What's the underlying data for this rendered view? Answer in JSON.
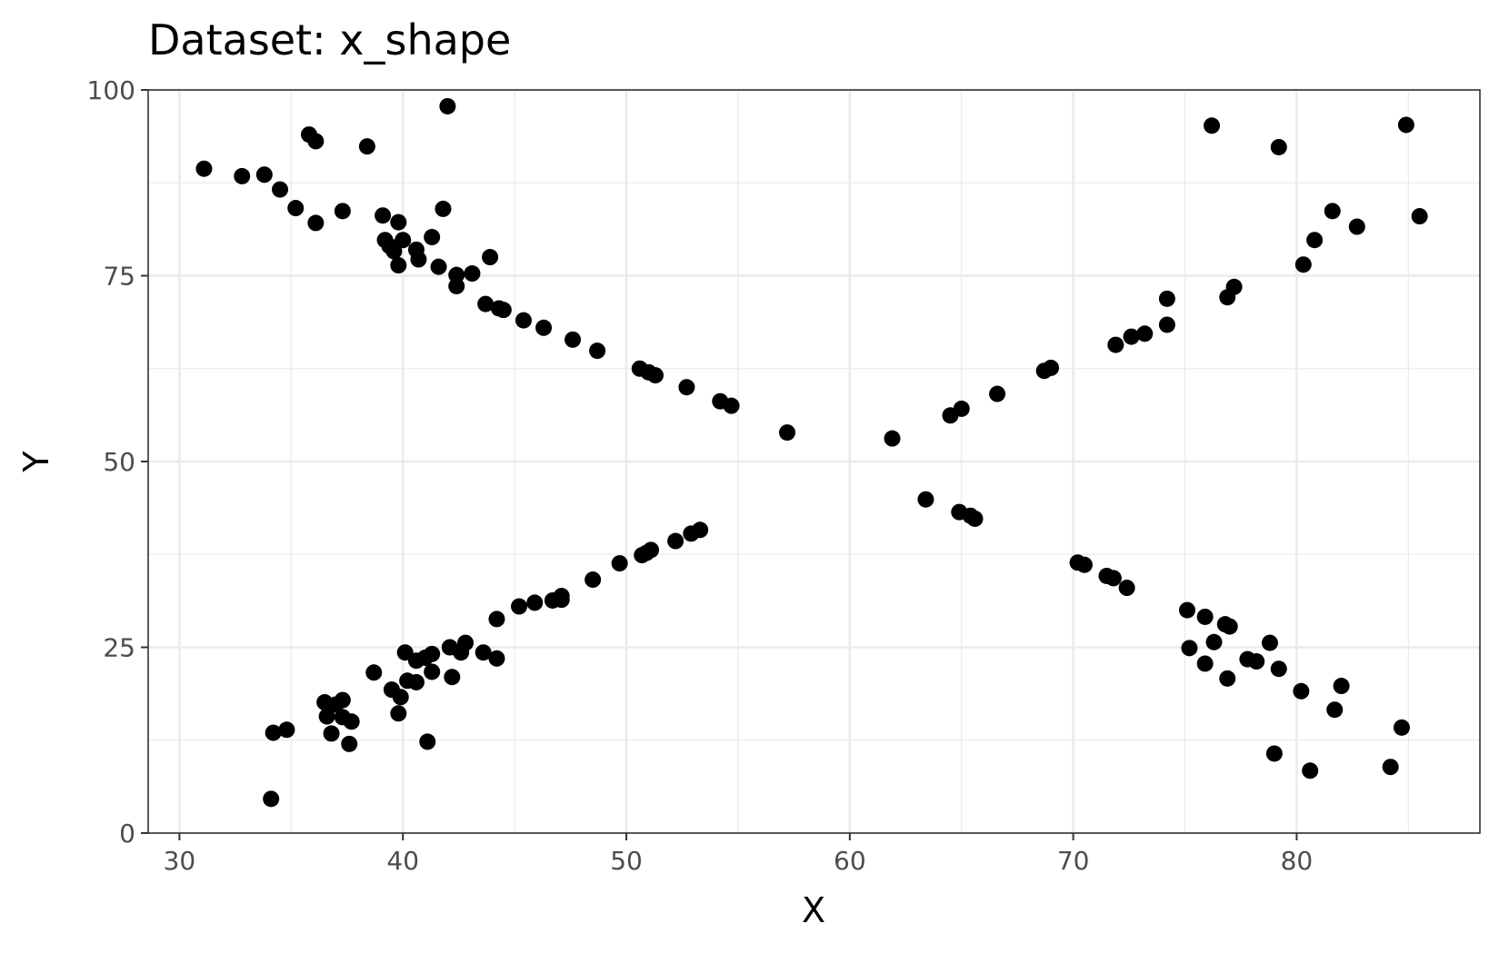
{
  "chart_data": {
    "type": "scatter",
    "title": "Dataset: x_shape",
    "xlabel": "X",
    "ylabel": "Y",
    "xlim": [
      28.6,
      88.2
    ],
    "ylim": [
      0,
      100
    ],
    "x_ticks": [
      30,
      40,
      50,
      60,
      70,
      80
    ],
    "y_ticks": [
      0,
      25,
      50,
      75,
      100
    ],
    "x_tick_labels": [
      "30",
      "40",
      "50",
      "60",
      "70",
      "80"
    ],
    "y_tick_labels": [
      "0",
      "25",
      "50",
      "75",
      "100"
    ],
    "grid": true,
    "point_color": "#000000",
    "points": [
      [
        31.1,
        89.4
      ],
      [
        32.8,
        88.4
      ],
      [
        33.8,
        88.6
      ],
      [
        34.5,
        86.6
      ],
      [
        35.2,
        84.1
      ],
      [
        35.8,
        94.0
      ],
      [
        36.1,
        93.1
      ],
      [
        36.1,
        82.1
      ],
      [
        37.3,
        83.7
      ],
      [
        38.4,
        92.4
      ],
      [
        39.1,
        83.1
      ],
      [
        39.8,
        82.2
      ],
      [
        39.2,
        79.8
      ],
      [
        39.4,
        79.0
      ],
      [
        39.6,
        78.3
      ],
      [
        40.0,
        79.8
      ],
      [
        39.8,
        76.4
      ],
      [
        40.6,
        78.5
      ],
      [
        40.7,
        77.2
      ],
      [
        41.3,
        80.2
      ],
      [
        41.6,
        76.2
      ],
      [
        41.8,
        84.0
      ],
      [
        42.0,
        97.8
      ],
      [
        42.4,
        75.1
      ],
      [
        42.4,
        73.6
      ],
      [
        43.1,
        75.3
      ],
      [
        43.7,
        71.2
      ],
      [
        43.9,
        77.5
      ],
      [
        44.3,
        70.6
      ],
      [
        44.5,
        70.4
      ],
      [
        45.4,
        69.0
      ],
      [
        46.3,
        68.0
      ],
      [
        47.6,
        66.4
      ],
      [
        48.7,
        64.9
      ],
      [
        50.6,
        62.5
      ],
      [
        51.0,
        62.0
      ],
      [
        51.3,
        61.6
      ],
      [
        52.7,
        60.0
      ],
      [
        54.2,
        58.1
      ],
      [
        54.7,
        57.5
      ],
      [
        57.2,
        53.9
      ],
      [
        61.9,
        53.1
      ],
      [
        64.5,
        56.2
      ],
      [
        65.0,
        57.1
      ],
      [
        66.6,
        59.1
      ],
      [
        68.7,
        62.2
      ],
      [
        69.0,
        62.6
      ],
      [
        71.9,
        65.7
      ],
      [
        72.6,
        66.8
      ],
      [
        73.2,
        67.2
      ],
      [
        74.2,
        68.4
      ],
      [
        74.2,
        71.9
      ],
      [
        76.9,
        72.1
      ],
      [
        77.2,
        73.5
      ],
      [
        76.2,
        95.2
      ],
      [
        79.2,
        92.3
      ],
      [
        80.3,
        76.5
      ],
      [
        80.8,
        79.8
      ],
      [
        81.6,
        83.7
      ],
      [
        82.7,
        81.6
      ],
      [
        84.9,
        95.3
      ],
      [
        85.5,
        83.0
      ],
      [
        34.1,
        4.6
      ],
      [
        34.2,
        13.5
      ],
      [
        34.8,
        13.9
      ],
      [
        36.5,
        17.6
      ],
      [
        36.6,
        15.7
      ],
      [
        37.0,
        17.3
      ],
      [
        36.8,
        13.4
      ],
      [
        37.3,
        17.9
      ],
      [
        37.3,
        15.6
      ],
      [
        37.6,
        12.0
      ],
      [
        37.7,
        15.0
      ],
      [
        38.7,
        21.6
      ],
      [
        39.5,
        19.3
      ],
      [
        39.9,
        18.3
      ],
      [
        39.8,
        16.1
      ],
      [
        40.1,
        24.3
      ],
      [
        40.2,
        20.5
      ],
      [
        40.6,
        23.2
      ],
      [
        40.6,
        20.3
      ],
      [
        41.0,
        23.6
      ],
      [
        41.1,
        12.3
      ],
      [
        41.3,
        24.1
      ],
      [
        41.3,
        21.7
      ],
      [
        42.1,
        25.0
      ],
      [
        42.2,
        21.0
      ],
      [
        42.6,
        24.3
      ],
      [
        42.8,
        25.6
      ],
      [
        43.6,
        24.3
      ],
      [
        44.2,
        23.5
      ],
      [
        44.2,
        28.8
      ],
      [
        45.2,
        30.5
      ],
      [
        45.9,
        31.0
      ],
      [
        46.7,
        31.3
      ],
      [
        47.1,
        31.4
      ],
      [
        47.1,
        31.9
      ],
      [
        48.5,
        34.1
      ],
      [
        49.7,
        36.3
      ],
      [
        50.7,
        37.4
      ],
      [
        50.9,
        37.7
      ],
      [
        51.1,
        38.1
      ],
      [
        52.2,
        39.3
      ],
      [
        52.9,
        40.3
      ],
      [
        53.3,
        40.8
      ],
      [
        63.4,
        44.9
      ],
      [
        64.9,
        43.2
      ],
      [
        65.4,
        42.7
      ],
      [
        65.6,
        42.3
      ],
      [
        70.2,
        36.4
      ],
      [
        70.5,
        36.1
      ],
      [
        71.5,
        34.6
      ],
      [
        71.8,
        34.3
      ],
      [
        72.4,
        33.0
      ],
      [
        75.1,
        30.0
      ],
      [
        75.2,
        24.9
      ],
      [
        75.9,
        29.1
      ],
      [
        75.9,
        22.8
      ],
      [
        76.3,
        25.7
      ],
      [
        76.8,
        28.1
      ],
      [
        77.0,
        27.8
      ],
      [
        76.9,
        20.8
      ],
      [
        77.8,
        23.4
      ],
      [
        78.2,
        23.1
      ],
      [
        78.8,
        25.6
      ],
      [
        79.2,
        22.1
      ],
      [
        79.0,
        10.7
      ],
      [
        80.2,
        19.1
      ],
      [
        80.6,
        8.4
      ],
      [
        81.7,
        16.6
      ],
      [
        82.0,
        19.8
      ],
      [
        84.2,
        8.9
      ],
      [
        84.7,
        14.2
      ]
    ]
  }
}
